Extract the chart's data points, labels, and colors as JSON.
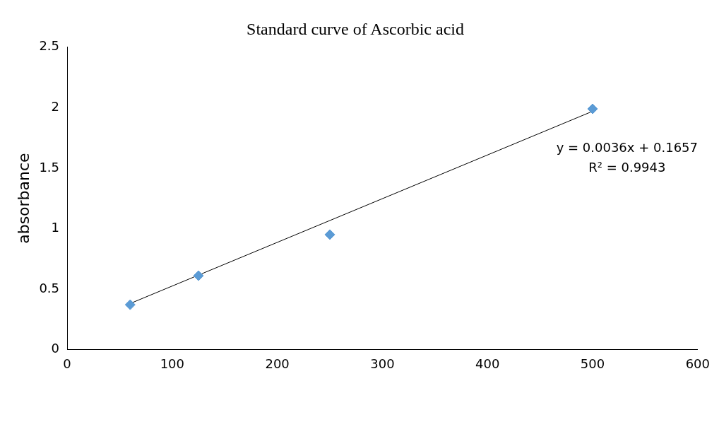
{
  "chart_data": {
    "type": "scatter",
    "title": "Standard curve of Ascorbic acid",
    "ylabel": "absorbance",
    "series": [
      {
        "type": "scatter",
        "color": "#5b9bd5",
        "x": [
          60,
          125,
          250,
          500
        ],
        "values": [
          0.37,
          0.61,
          0.95,
          1.99
        ],
        "marker": "diamond"
      },
      {
        "type": "line",
        "color": "#000000",
        "x": [
          60,
          500
        ],
        "values": [
          0.38,
          1.97
        ],
        "marker": "none",
        "line_style": "solid"
      }
    ],
    "xlim": [
      0,
      600
    ],
    "xticks": [
      0,
      100,
      200,
      300,
      400,
      500,
      600
    ],
    "ylim": [
      0,
      2.5
    ],
    "yticks": [
      0,
      0.5,
      1,
      1.5,
      2,
      2.5
    ],
    "grid": false,
    "legend": false,
    "annotations": [
      "y = 0.0036x + 0.1657",
      "R² = 0.9943"
    ]
  }
}
